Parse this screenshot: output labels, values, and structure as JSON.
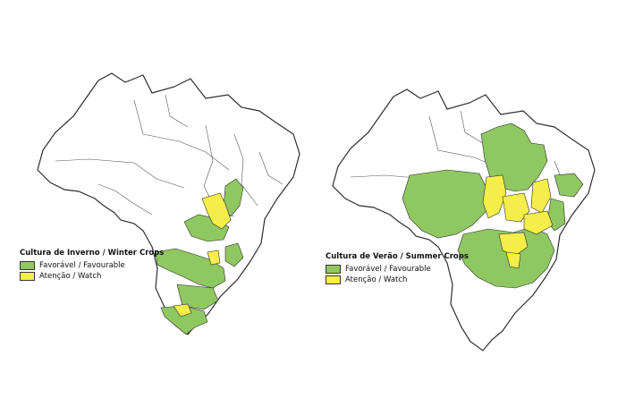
{
  "colors": {
    "favourable": "#8fc760",
    "watch": "#f5ee4a",
    "outline": "#2e2e2e"
  },
  "maps": [
    {
      "legend_title": "Cultura de Inverno / Winter Crops",
      "legend_items": [
        {
          "label": "Favorável / Favourable",
          "status": "favourable"
        },
        {
          "label": "Atenção / Watch",
          "status": "watch"
        }
      ]
    },
    {
      "legend_title": "Cultura de Verão / Summer Crops",
      "legend_items": [
        {
          "label": "Favorável / Favourable",
          "status": "favourable"
        },
        {
          "label": "Atenção / Watch",
          "status": "watch"
        }
      ]
    }
  ]
}
